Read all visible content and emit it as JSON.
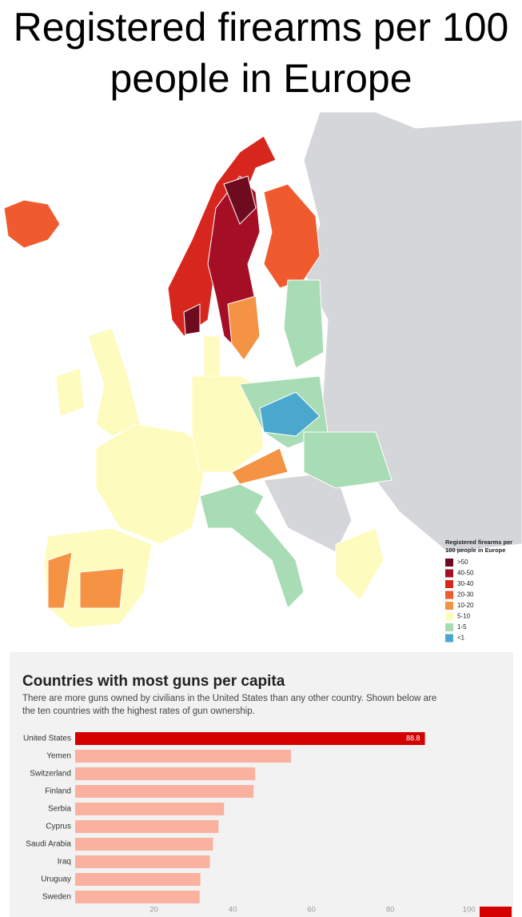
{
  "title": "Registered firearms per 100 people in Europe",
  "map": {
    "legend_title": "Registered firearms per 100 people in Europe",
    "legend": [
      {
        "label": ">50",
        "color": "#6e0b1e"
      },
      {
        "label": "40-50",
        "color": "#a50f25"
      },
      {
        "label": "30-40",
        "color": "#d7261e"
      },
      {
        "label": "20-30",
        "color": "#ef5a2f"
      },
      {
        "label": "10-20",
        "color": "#f49343"
      },
      {
        "label": "5-10",
        "color": "#fdfbbd"
      },
      {
        "label": "1-5",
        "color": "#a8dcb5"
      },
      {
        "label": "<1",
        "color": "#4aa8cf"
      }
    ]
  },
  "chart_data": {
    "type": "hbar",
    "title": "Countries with most guns per capita",
    "subtitle": "There are more guns owned by civilians in the United States than any other country. Shown below are the ten countries with the highest rates of gun ownership.",
    "categories": [
      "United States",
      "Yemen",
      "Switzerland",
      "Finland",
      "Serbia",
      "Cyprus",
      "Saudi Arabia",
      "Iraq",
      "Uruguay",
      "Sweden"
    ],
    "values": [
      88.8,
      54.8,
      45.7,
      45.3,
      37.8,
      36.4,
      35,
      34.2,
      31.8,
      31.6
    ],
    "colors": [
      "#d40000",
      "#fbb1a0",
      "#fbb1a0",
      "#fbb1a0",
      "#fbb1a0",
      "#fbb1a0",
      "#fbb1a0",
      "#fbb1a0",
      "#fbb1a0",
      "#fbb1a0"
    ],
    "xlim": [
      0,
      110
    ],
    "xticks": [
      20,
      40,
      60,
      80,
      100
    ],
    "grid": false
  }
}
